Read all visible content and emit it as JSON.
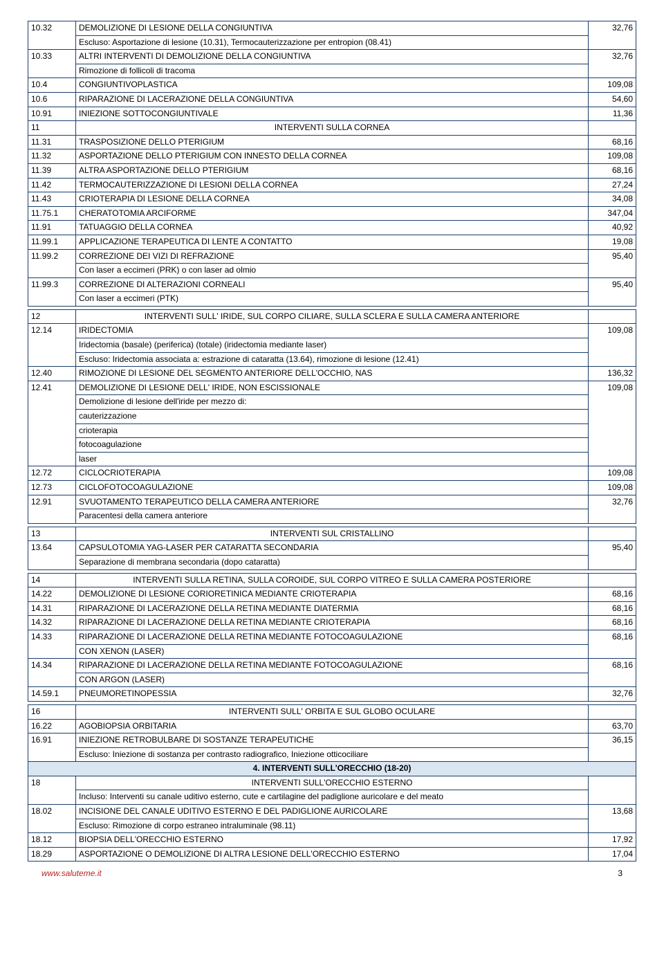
{
  "rows": [
    {
      "c": "10.32",
      "d": [
        "DEMOLIZIONE DI LESIONE DELLA CONGIUNTIVA",
        "Escluso: Asportazione di lesione (10.31), Termocauterizzazione per entropion (08.41)"
      ],
      "v": "32,76"
    },
    {
      "c": "10.33",
      "d": [
        "ALTRI INTERVENTI DI DEMOLIZIONE DELLA CONGIUNTIVA",
        "Rimozione di follicoli di tracoma"
      ],
      "v": "32,76"
    },
    {
      "c": "10.4",
      "d": [
        "CONGIUNTIVOPLASTICA"
      ],
      "v": "109,08"
    },
    {
      "c": "10.6",
      "d": [
        "RIPARAZIONE DI LACERAZIONE DELLA CONGIUNTIVA"
      ],
      "v": "54,60"
    },
    {
      "c": "10.91",
      "d": [
        "INIEZIONE SOTTOCONGIUNTIVALE"
      ],
      "v": "11,36"
    },
    {
      "c": "11",
      "d": [
        "INTERVENTI SULLA CORNEA"
      ],
      "center": true
    },
    {
      "c": "11.31",
      "d": [
        "TRASPOSIZIONE DELLO PTERIGIUM"
      ],
      "v": "68,16"
    },
    {
      "c": "11.32",
      "d": [
        "ASPORTAZIONE DELLO PTERIGIUM CON INNESTO DELLA CORNEA"
      ],
      "v": "109,08"
    },
    {
      "c": "11.39",
      "d": [
        "ALTRA ASPORTAZIONE DELLO PTERIGIUM"
      ],
      "v": "68,16"
    },
    {
      "c": "11.42",
      "d": [
        "TERMOCAUTERIZZAZIONE DI LESIONI DELLA CORNEA"
      ],
      "v": "27,24"
    },
    {
      "c": "11.43",
      "d": [
        "CRIOTERAPIA DI LESIONE DELLA CORNEA"
      ],
      "v": "34,08"
    },
    {
      "c": "11.75.1",
      "d": [
        "CHERATOTOMIA ARCIFORME"
      ],
      "v": "347,04"
    },
    {
      "c": "11.91",
      "d": [
        "TATUAGGIO DELLA CORNEA"
      ],
      "v": "40,92"
    },
    {
      "c": "11.99.1",
      "d": [
        "APPLICAZIONE TERAPEUTICA DI LENTE A CONTATTO"
      ],
      "v": "19,08"
    },
    {
      "c": "11.99.2",
      "d": [
        "CORREZIONE DEI VIZI DI REFRAZIONE",
        "Con laser a eccimeri (PRK) o con laser ad olmio"
      ],
      "v": "95,40"
    },
    {
      "c": "11.99.3",
      "d": [
        "CORREZIONE DI ALTERAZIONI CORNEALI",
        "Con laser a eccimeri (PTK)"
      ],
      "v": "95,40"
    },
    {
      "newtable": true
    },
    {
      "c": "12",
      "d": [
        "INTERVENTI SULL' IRIDE, SUL CORPO CILIARE, SULLA SCLERA E SULLA CAMERA ANTERIORE"
      ],
      "center": true
    },
    {
      "c": "12.14",
      "d": [
        "IRIDECTOMIA",
        "Iridectomia (basale) (periferica) (totale) (iridectomia mediante laser)",
        "Escluso: Iridectomia associata a: estrazione di cataratta (13.64), rimozione di lesione (12.41)"
      ],
      "v": "109,08"
    },
    {
      "c": "12.40",
      "d": [
        "RIMOZIONE DI LESIONE DEL SEGMENTO ANTERIORE DELL'OCCHIO, NAS"
      ],
      "v": "136,32"
    },
    {
      "c": "12.41",
      "d": [
        "DEMOLIZIONE DI LESIONE DELL' IRIDE, NON ESCISSIONALE",
        "Demolizione di lesione dell'iride per mezzo di:",
        "cauterizzazione",
        "crioterapia",
        "fotocoagulazione",
        "laser"
      ],
      "v": "109,08"
    },
    {
      "c": "12.72",
      "d": [
        "CICLOCRIOTERAPIA"
      ],
      "v": "109,08"
    },
    {
      "c": "12.73",
      "d": [
        "CICLOFOTOCOAGULAZIONE"
      ],
      "v": "109,08"
    },
    {
      "c": "12.91",
      "d": [
        "SVUOTAMENTO TERAPEUTICO DELLA CAMERA ANTERIORE",
        "Paracentesi della camera anteriore"
      ],
      "v": "32,76"
    },
    {
      "newtable": true
    },
    {
      "c": "13",
      "d": [
        "INTERVENTI SUL CRISTALLINO"
      ],
      "center": true
    },
    {
      "c": "13.64",
      "d": [
        "CAPSULOTOMIA YAG-LASER PER CATARATTA SECONDARIA",
        "Separazione di membrana secondaria (dopo cataratta)"
      ],
      "v": "95,40"
    },
    {
      "newtable": true
    },
    {
      "c": "14",
      "d": [
        "INTERVENTI SULLA RETINA, SULLA COROIDE, SUL CORPO VITREO E SULLA CAMERA POSTERIORE"
      ],
      "center": true
    },
    {
      "c": "14.22",
      "d": [
        "DEMOLIZIONE DI LESIONE CORIORETINICA MEDIANTE CRIOTERAPIA"
      ],
      "v": "68,16"
    },
    {
      "c": "14.31",
      "d": [
        "RIPARAZIONE DI LACERAZIONE DELLA RETINA MEDIANTE DIATERMIA"
      ],
      "v": "68,16"
    },
    {
      "c": "14.32",
      "d": [
        "RIPARAZIONE DI LACERAZIONE DELLA RETINA MEDIANTE CRIOTERAPIA"
      ],
      "v": "68,16"
    },
    {
      "c": "14.33",
      "d": [
        "RIPARAZIONE DI LACERAZIONE DELLA RETINA MEDIANTE FOTOCOAGULAZIONE",
        "CON XENON (LASER)"
      ],
      "v": "68,16"
    },
    {
      "c": "14.34",
      "d": [
        "RIPARAZIONE DI LACERAZIONE DELLA RETINA MEDIANTE FOTOCOAGULAZIONE",
        "CON ARGON (LASER)"
      ],
      "v": "68,16"
    },
    {
      "c": "14.59.1",
      "d": [
        "PNEUMORETINOPESSIA"
      ],
      "v": "32,76"
    },
    {
      "newtable": true
    },
    {
      "c": "16",
      "d": [
        "INTERVENTI SULL' ORBITA E SUL GLOBO OCULARE"
      ],
      "center": true
    },
    {
      "c": "16.22",
      "d": [
        "AGOBIOPSIA ORBITARIA"
      ],
      "v": "63,70"
    },
    {
      "c": "16.91",
      "d": [
        "INIEZIONE RETROBULBARE DI SOSTANZE TERAPEUTICHE",
        "Escluso: Iniezione di sostanza per contrasto radiografico, Iniezione otticociliare"
      ],
      "v": "36,15"
    },
    {
      "section": "4. INTERVENTI SULL'ORECCHIO (18-20)"
    },
    {
      "c": "18",
      "d": [
        "INTERVENTI SULL'ORECCHIO ESTERNO",
        "Incluso: Interventi su canale uditivo esterno, cute e cartilagine del padiglione auricolare e del meato"
      ],
      "center": true
    },
    {
      "c": "18.02",
      "d": [
        "INCISIONE DEL CANALE UDITIVO ESTERNO E DEL PADIGLIONE AURICOLARE",
        "Escluso: Rimozione di corpo estraneo intraluminale (98.11)"
      ],
      "v": "13,68"
    },
    {
      "c": "18.12",
      "d": [
        "BIOPSIA DELL'ORECCHIO ESTERNO"
      ],
      "v": "17,92"
    },
    {
      "c": "18.29",
      "d": [
        "ASPORTAZIONE O DEMOLIZIONE DI ALTRA LESIONE DELL'ORECCHIO ESTERNO"
      ],
      "v": "17,04"
    }
  ],
  "footer": {
    "url": "www.saluteme.it",
    "page": "3"
  }
}
